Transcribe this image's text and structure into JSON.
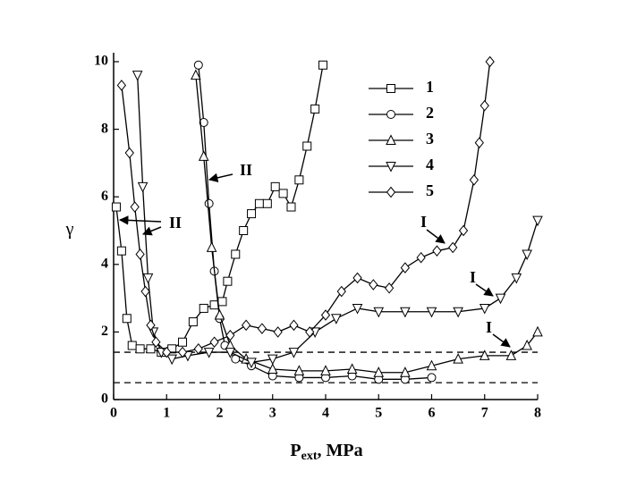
{
  "chart_data": {
    "type": "line",
    "xlabel": [
      "P",
      "ext",
      ", MPa"
    ],
    "ylabel": "γ",
    "xlim": [
      0,
      8
    ],
    "xticks": [
      0,
      1,
      2,
      3,
      4,
      5,
      6,
      7,
      8
    ],
    "ylim": [
      0,
      10
    ],
    "yticks": [
      0,
      2,
      4,
      6,
      8,
      10
    ],
    "reference_lines": [
      1.4,
      0.5
    ],
    "annotations": [
      "II",
      "II",
      "I",
      "I",
      "I"
    ],
    "series": [
      {
        "name": "1",
        "color": "#000000",
        "marker": "square",
        "x": [
          0.05,
          0.15,
          0.25,
          0.35,
          0.5,
          0.7,
          0.9,
          1.1,
          1.3,
          1.5,
          1.7,
          1.9,
          2.05,
          2.15,
          2.3,
          2.45,
          2.6,
          2.75,
          2.9,
          3.05,
          3.2,
          3.35,
          3.5,
          3.65,
          3.8,
          3.95
        ],
        "values": [
          5.7,
          4.4,
          2.4,
          1.6,
          1.5,
          1.5,
          1.4,
          1.5,
          1.7,
          2.3,
          2.7,
          2.8,
          2.9,
          3.5,
          4.3,
          5.0,
          5.5,
          5.8,
          5.8,
          6.3,
          6.1,
          5.7,
          6.5,
          7.5,
          8.6,
          9.9
        ]
      },
      {
        "name": "2",
        "color": "#000000",
        "marker": "circle",
        "x": [
          1.6,
          1.7,
          1.8,
          1.9,
          2.0,
          2.1,
          2.3,
          2.6,
          3.0,
          3.5,
          4.0,
          4.5,
          5.0,
          5.5,
          6.0
        ],
        "values": [
          9.9,
          8.2,
          5.8,
          3.8,
          2.4,
          1.6,
          1.2,
          1.0,
          0.7,
          0.65,
          0.65,
          0.7,
          0.6,
          0.6,
          0.65
        ]
      },
      {
        "name": "3",
        "color": "#000000",
        "marker": "triangle-up",
        "x": [
          1.55,
          1.7,
          1.85,
          2.0,
          2.2,
          2.5,
          3.0,
          3.5,
          4.0,
          4.5,
          5.0,
          5.5,
          6.0,
          6.5,
          7.0,
          7.5,
          7.8,
          8.0
        ],
        "values": [
          9.6,
          7.2,
          4.5,
          2.5,
          1.6,
          1.2,
          0.9,
          0.85,
          0.85,
          0.9,
          0.8,
          0.8,
          1.0,
          1.2,
          1.3,
          1.3,
          1.6,
          2.0
        ]
      },
      {
        "name": "4",
        "color": "#000000",
        "marker": "triangle-down",
        "x": [
          0.45,
          0.55,
          0.65,
          0.75,
          0.9,
          1.1,
          1.4,
          1.8,
          2.2,
          2.6,
          3.0,
          3.4,
          3.8,
          4.2,
          4.6,
          5.0,
          5.5,
          6.0,
          6.5,
          7.0,
          7.3,
          7.6,
          7.8,
          8.0
        ],
        "values": [
          9.6,
          6.3,
          3.6,
          2.0,
          1.4,
          1.2,
          1.3,
          1.4,
          1.4,
          1.1,
          1.2,
          1.4,
          2.0,
          2.4,
          2.7,
          2.6,
          2.6,
          2.6,
          2.6,
          2.7,
          3.0,
          3.6,
          4.3,
          5.3
        ]
      },
      {
        "name": "5",
        "color": "#000000",
        "marker": "diamond",
        "x": [
          0.15,
          0.3,
          0.4,
          0.5,
          0.6,
          0.7,
          0.8,
          1.0,
          1.3,
          1.6,
          1.9,
          2.2,
          2.5,
          2.8,
          3.1,
          3.4,
          3.7,
          4.0,
          4.3,
          4.6,
          4.9,
          5.2,
          5.5,
          5.8,
          6.1,
          6.4,
          6.6,
          6.8,
          6.9,
          7.0,
          7.1
        ],
        "values": [
          9.3,
          7.3,
          5.7,
          4.3,
          3.2,
          2.2,
          1.7,
          1.4,
          1.4,
          1.5,
          1.7,
          1.9,
          2.2,
          2.1,
          2.0,
          2.2,
          2.0,
          2.5,
          3.2,
          3.6,
          3.4,
          3.3,
          3.9,
          4.2,
          4.4,
          4.5,
          5.0,
          6.5,
          7.6,
          8.7,
          10.0
        ]
      }
    ]
  }
}
